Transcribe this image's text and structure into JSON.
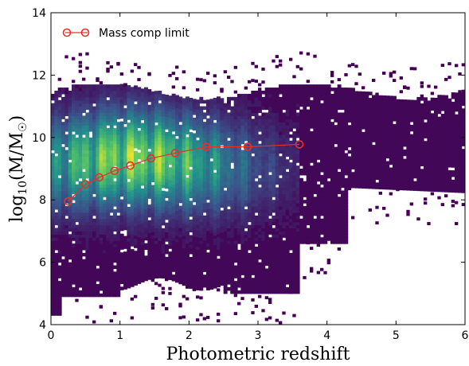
{
  "chart_data": {
    "type": "heatmap",
    "xlabel": "Photometric redshift",
    "ylabel_main": "log",
    "ylabel_sub": "10",
    "ylabel_paren": "(M/M",
    "ylabel_sun": "☉",
    "ylabel_close": ")",
    "xlim": [
      0,
      6
    ],
    "ylim": [
      4,
      14
    ],
    "xticks": [
      0,
      1,
      2,
      3,
      4,
      5,
      6
    ],
    "yticks": [
      4,
      6,
      8,
      10,
      12,
      14
    ],
    "legend": {
      "label": "Mass comp limit",
      "position": "top-left"
    },
    "heatmap": {
      "colormap": [
        "#440154",
        "#3b528b",
        "#21918c",
        "#5ec962",
        "#fde725"
      ],
      "x_range": [
        0,
        6
      ],
      "y_range": [
        4,
        12.5
      ],
      "peak_redshift": 1.2,
      "peak_mass": 9.4,
      "density_note_hidden": true
    },
    "series": [
      {
        "name": "Mass comp limit",
        "color": "#e8302a",
        "x": [
          0.25,
          0.5,
          0.7,
          0.92,
          1.15,
          1.45,
          1.8,
          2.25,
          2.85,
          3.6
        ],
        "y": [
          7.95,
          8.5,
          8.72,
          8.93,
          9.1,
          9.33,
          9.5,
          9.7,
          9.7,
          9.78
        ]
      }
    ]
  }
}
